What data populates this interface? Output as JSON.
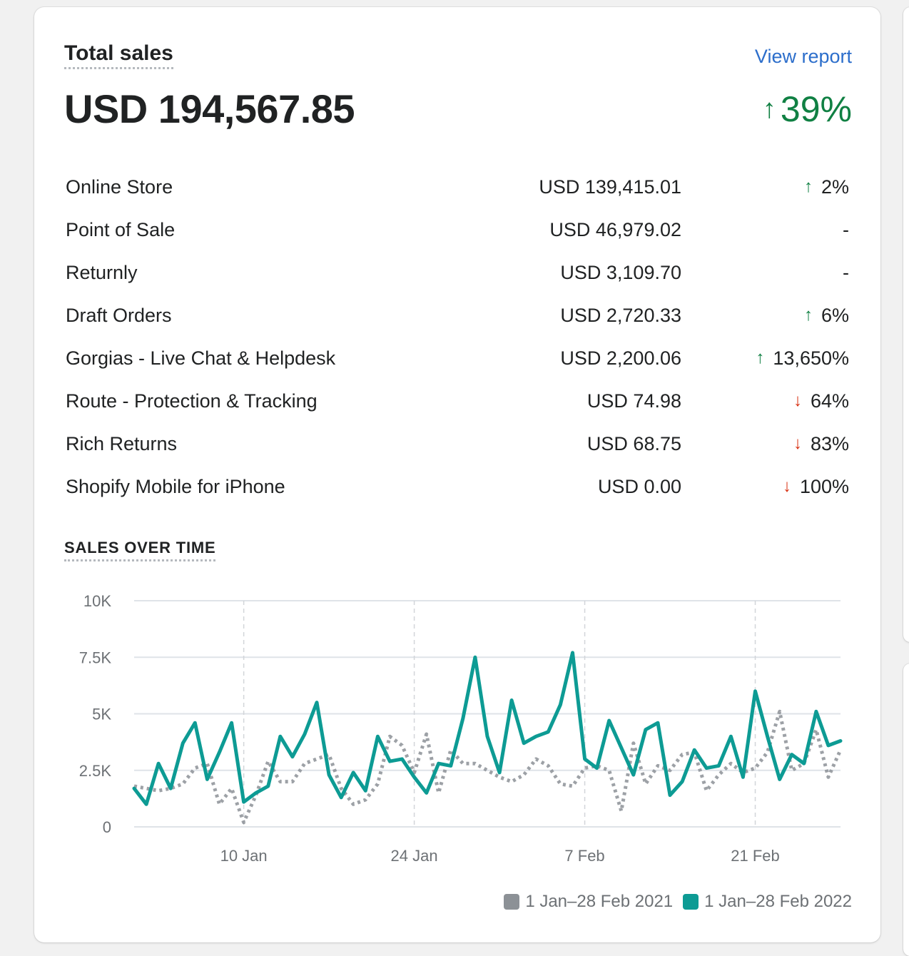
{
  "card": {
    "title": "Total sales",
    "view_report": "View report",
    "total": "USD 194,567.85",
    "change": "39%",
    "change_direction": "up"
  },
  "channels": [
    {
      "name": "Online Store",
      "amount": "USD 139,415.01",
      "change": "2%",
      "direction": "up"
    },
    {
      "name": "Point of Sale",
      "amount": "USD 46,979.02",
      "change": "-",
      "direction": "none"
    },
    {
      "name": "Returnly",
      "amount": "USD 3,109.70",
      "change": "-",
      "direction": "none"
    },
    {
      "name": "Draft Orders",
      "amount": "USD 2,720.33",
      "change": "6%",
      "direction": "up"
    },
    {
      "name": "Gorgias - Live Chat & Helpdesk",
      "amount": "USD 2,200.06",
      "change": "13,650%",
      "direction": "up"
    },
    {
      "name": "Route - Protection & Tracking",
      "amount": "USD 74.98",
      "change": "64%",
      "direction": "down"
    },
    {
      "name": "Rich Returns",
      "amount": "USD 68.75",
      "change": "83%",
      "direction": "down"
    },
    {
      "name": "Shopify Mobile for iPhone",
      "amount": "USD 0.00",
      "change": "100%",
      "direction": "down"
    }
  ],
  "icons": {
    "up": "arrow-up-icon",
    "down": "arrow-down-icon"
  },
  "colors": {
    "accent_link": "#2c6ecb",
    "positive": "#108043",
    "negative": "#d72c0d",
    "series_current": "#0d9b94",
    "series_previous": "#8c9196"
  },
  "chart_section": {
    "title": "SALES OVER TIME"
  },
  "chart_data": {
    "type": "line",
    "yticks": [
      "0",
      "2.5K",
      "5K",
      "7.5K",
      "10K"
    ],
    "ytick_values": [
      0,
      2500,
      5000,
      7500,
      10000
    ],
    "ylim": [
      0,
      10000
    ],
    "xlim": [
      1,
      59
    ],
    "xticks": [
      {
        "label": "10 Jan",
        "day": 10
      },
      {
        "label": "24 Jan",
        "day": 24
      },
      {
        "label": "7 Feb",
        "day": 38
      },
      {
        "label": "21 Feb",
        "day": 52
      }
    ],
    "grid": true,
    "legend_position": "bottom-right",
    "series": [
      {
        "name": "1 Jan–28 Feb 2021",
        "style": "dotted",
        "color": "#8c9196",
        "values": [
          1800,
          1700,
          1600,
          1700,
          1900,
          2600,
          2800,
          1000,
          1700,
          200,
          1400,
          2900,
          2000,
          2000,
          2800,
          3000,
          3200,
          1700,
          1000,
          1200,
          1900,
          4000,
          3600,
          2400,
          4100,
          1500,
          3400,
          2800,
          2800,
          2500,
          2200,
          2000,
          2300,
          3000,
          2700,
          1900,
          1800,
          2600,
          2700,
          2500,
          700,
          3700,
          1900,
          2700,
          2500,
          3200,
          3300,
          1600,
          2300,
          2800,
          2400,
          2600,
          3300,
          5100,
          2500,
          2800,
          4300,
          2200,
          3400
        ]
      },
      {
        "name": "1 Jan–28 Feb 2022",
        "style": "solid",
        "color": "#0d9b94",
        "values": [
          1700,
          1000,
          2800,
          1700,
          3700,
          4600,
          2100,
          3300,
          4600,
          1100,
          1500,
          1800,
          4000,
          3100,
          4100,
          5500,
          2300,
          1300,
          2400,
          1600,
          4000,
          2900,
          3000,
          2200,
          1500,
          2800,
          2700,
          4800,
          7500,
          4000,
          2400,
          5600,
          3700,
          4000,
          4200,
          5400,
          7700,
          3000,
          2600,
          4700,
          3500,
          2300,
          4300,
          4600,
          1400,
          2000,
          3400,
          2600,
          2700,
          4000,
          2200,
          6000,
          4000,
          2100,
          3200,
          2800,
          5100,
          3600,
          3800
        ]
      }
    ]
  }
}
